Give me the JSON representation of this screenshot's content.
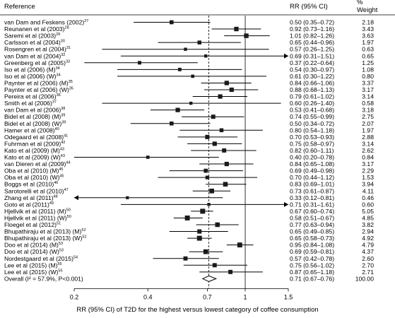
{
  "chart_data": {
    "type": "forest",
    "headers": {
      "reference": "Reference",
      "rr": "RR (95% CI)",
      "weight_pct": "%",
      "weight": "Weight"
    },
    "rows": [
      {
        "name": "van Dam and Feskens (2002)",
        "sup": "27",
        "rr": 0.5,
        "lo": 0.35,
        "hi": 0.72,
        "ci": "0.50 (0.35–0.72)",
        "weight": "2.18"
      },
      {
        "name": "Reunanen et al (2003)",
        "sup": "28",
        "rr": 0.92,
        "lo": 0.73,
        "hi": 1.16,
        "ci": "0.92 (0.73–1.16)",
        "weight": "3.43"
      },
      {
        "name": "Saremi et al (2003)",
        "sup": "29",
        "rr": 1.01,
        "lo": 0.82,
        "hi": 1.26,
        "ci": "1.01 (0.82–1.26)",
        "weight": "3.63"
      },
      {
        "name": "Carlsson et al (2004)",
        "sup": "30",
        "rr": 0.65,
        "lo": 0.44,
        "hi": 0.96,
        "ci": "0.65 (0.44–0.96)",
        "weight": "1.97"
      },
      {
        "name": "Rosengren et al (2004)",
        "sup": "31",
        "rr": 0.57,
        "lo": 0.26,
        "hi": 1.25,
        "ci": "0.57 (0.26–1.25)",
        "weight": "0.63"
      },
      {
        "name": "van Dam et al (2004)",
        "sup": "32",
        "rr": 0.69,
        "lo": 0.31,
        "hi": 1.51,
        "ci": "0.69 (0.31–1.51)",
        "weight": "0.65"
      },
      {
        "name": "Greenberg et al (2005)",
        "sup": "33",
        "rr": 0.37,
        "lo": 0.22,
        "hi": 0.64,
        "ci": "0.37 (0.22–0.64)",
        "weight": "1.25"
      },
      {
        "name": "Iso et al (2006)  (M)",
        "sup": "34",
        "rr": 0.54,
        "lo": 0.3,
        "hi": 0.97,
        "ci": "0.54 (0.30–0.97)",
        "weight": "1.08"
      },
      {
        "name": "Iso et al (2006)  (W)",
        "sup": "34",
        "rr": 0.61,
        "lo": 0.3,
        "hi": 1.22,
        "ci": "0.61 (0.30–1.22)",
        "weight": "0.80"
      },
      {
        "name": "Paynter et al (2006) (M)",
        "sup": "35",
        "rr": 0.84,
        "lo": 0.66,
        "hi": 1.06,
        "ci": "0.84 (0.66–1.06)",
        "weight": "3.37"
      },
      {
        "name": "Paynter et al (2006) (W)",
        "sup": "35",
        "rr": 0.88,
        "lo": 0.68,
        "hi": 1.13,
        "ci": "0.88 (0.68–1.13)",
        "weight": "3.17"
      },
      {
        "name": "Pereira et al (2006)",
        "sup": "36",
        "rr": 0.79,
        "lo": 0.61,
        "hi": 1.02,
        "ci": "0.79 (0.61–1.02)",
        "weight": "3.14"
      },
      {
        "name": "Smith et al (2006)",
        "sup": "37",
        "rr": 0.6,
        "lo": 0.26,
        "hi": 1.4,
        "ci": "0.60 (0.26–1.40)",
        "weight": "0.58"
      },
      {
        "name": "van Dam et al (2006)",
        "sup": "38",
        "rr": 0.53,
        "lo": 0.41,
        "hi": 0.68,
        "ci": "0.53 (0.41–0.68)",
        "weight": "3.18"
      },
      {
        "name": "Bidel et al (2008) (M)",
        "sup": "39",
        "rr": 0.74,
        "lo": 0.55,
        "hi": 0.99,
        "ci": "0.74 (0.55–0.99)",
        "weight": "2.75"
      },
      {
        "name": "Bidel et al (2008) (W)",
        "sup": "39",
        "rr": 0.5,
        "lo": 0.34,
        "hi": 0.72,
        "ci": "0.50 (0.34–0.72)",
        "weight": "2.07"
      },
      {
        "name": "Hamer et al (2008)",
        "sup": "40",
        "rr": 0.8,
        "lo": 0.54,
        "hi": 1.18,
        "ci": "0.80 (0.54–1.18)",
        "weight": "1.97"
      },
      {
        "name": "Odegaard et al (2008)",
        "sup": "41",
        "rr": 0.7,
        "lo": 0.53,
        "hi": 0.93,
        "ci": "0.70 (0.53–0.93)",
        "weight": "2.88"
      },
      {
        "name": "Fuhrman et al (2009)",
        "sup": "42",
        "rr": 0.75,
        "lo": 0.58,
        "hi": 0.97,
        "ci": "0.75 (0.58–0.97)",
        "weight": "3.14"
      },
      {
        "name": "Kato et al (2009) (M)",
        "sup": "43",
        "rr": 0.82,
        "lo": 0.6,
        "hi": 1.11,
        "ci": "0.82 (0.60–1.11)",
        "weight": "2.62"
      },
      {
        "name": "Kato et al (2009) (W)",
        "sup": "43",
        "rr": 0.4,
        "lo": 0.2,
        "hi": 0.78,
        "ci": "0.40 (0.20–0.78)",
        "weight": "0.84"
      },
      {
        "name": "van Dieren et al (2009)",
        "sup": "44",
        "rr": 0.84,
        "lo": 0.65,
        "hi": 1.08,
        "ci": "0.84 (0.65–1.08)",
        "weight": "3.17"
      },
      {
        "name": "Oba et al (2010) (M)",
        "sup": "45",
        "rr": 0.69,
        "lo": 0.49,
        "hi": 0.98,
        "ci": "0.69 (0.49–0.98)",
        "weight": "2.29"
      },
      {
        "name": "Oba et al (2010) (W)",
        "sup": "45",
        "rr": 0.7,
        "lo": 0.44,
        "hi": 1.12,
        "ci": "0.70 (0.44–1.12)",
        "weight": "1.53"
      },
      {
        "name": "Boggs et al (2010)",
        "sup": "46",
        "rr": 0.83,
        "lo": 0.69,
        "hi": 1.01,
        "ci": "0.83 (0.69–1.01)",
        "weight": "3.94"
      },
      {
        "name": "Sarotorelli et al (2010)",
        "sup": "47",
        "rr": 0.73,
        "lo": 0.61,
        "hi": 0.87,
        "ci": "0.73 (0.61–0.87)",
        "weight": "4.11"
      },
      {
        "name": "Zhang et al (2011)",
        "sup": "48",
        "rr": 0.33,
        "lo": 0.12,
        "hi": 0.81,
        "ci": "0.33 (0.12–0.81)",
        "weight": "0.46"
      },
      {
        "name": "Goto et al (2011)",
        "sup": "49",
        "rr": 0.71,
        "lo": 0.31,
        "hi": 1.61,
        "ci": "0.71 (0.31–1.61)",
        "weight": "0.60"
      },
      {
        "name": "Hjellvik et al (2011) (M)",
        "sup": "50",
        "rr": 0.67,
        "lo": 0.6,
        "hi": 0.74,
        "ci": "0.67 (0.60–0.74)",
        "weight": "5.05"
      },
      {
        "name": "Hjellvik et al (2011) (W)",
        "sup": "50",
        "rr": 0.58,
        "lo": 0.51,
        "hi": 0.67,
        "ci": "0.58 (0.51–0.67)",
        "weight": "4.85"
      },
      {
        "name": "Floegel et al (2012)",
        "sup": "51",
        "rr": 0.77,
        "lo": 0.63,
        "hi": 0.94,
        "ci": "0.77 (0.63–0.94)",
        "weight": "3.82"
      },
      {
        "name": "Bhupathiraju et al (2013) (M)",
        "sup": "52",
        "rr": 0.65,
        "lo": 0.49,
        "hi": 0.85,
        "ci": "0.65 (0.49–0.85)",
        "weight": "2.94"
      },
      {
        "name": "Bhupathiraju et al (2013) (W)",
        "sup": "52",
        "rr": 0.65,
        "lo": 0.58,
        "hi": 0.73,
        "ci": "0.65 (0.58–0.73)",
        "weight": "4.92"
      },
      {
        "name": "Doo et al (2014) (M)",
        "sup": "53",
        "rr": 0.95,
        "lo": 0.84,
        "hi": 1.08,
        "ci": "0.95 (0.84–1.08)",
        "weight": "4.79"
      },
      {
        "name": "Doo et al (2014) (W)",
        "sup": "53",
        "rr": 0.69,
        "lo": 0.59,
        "hi": 0.81,
        "ci": "0.69 (0.59–0.81)",
        "weight": "4.37"
      },
      {
        "name": "Nordestgaard et al (2015)",
        "sup": "54",
        "rr": 0.57,
        "lo": 0.42,
        "hi": 0.78,
        "ci": "0.57 (0.42–0.78)",
        "weight": "2.60"
      },
      {
        "name": "Lee et al (2015) (M)",
        "sup": "55",
        "rr": 0.75,
        "lo": 0.56,
        "hi": 1.02,
        "ci": "0.75 (0.56–1.02)",
        "weight": "2.70"
      },
      {
        "name": "Lee et al (2015) (W)",
        "sup": "55",
        "rr": 0.87,
        "lo": 0.65,
        "hi": 1.18,
        "ci": "0.87 (0.65–1.18)",
        "weight": "2.71"
      }
    ],
    "overall": {
      "name": "Overall (I² = 57.9%, P<0.001)",
      "rr": 0.71,
      "lo": 0.67,
      "hi": 0.76,
      "ci": "0.71 (0.67–0.76)",
      "weight": "100.00"
    },
    "x_scale": "log",
    "xlim": [
      0.2,
      1.5
    ],
    "x_ticks": [
      {
        "value": 0.2,
        "label": "0.2"
      },
      {
        "value": 0.4,
        "label": "0.4"
      },
      {
        "value": 0.7,
        "label": "0.7"
      },
      {
        "value": 1.0,
        "label": "1"
      },
      {
        "value": 1.5,
        "label": "1.5"
      }
    ],
    "xlabel": "RR (95% CI) of T2D for the highest versus lowest category of coffee consumption",
    "colors": {
      "marker": "#1a1a1a",
      "line": "#000000",
      "reference": "#000000",
      "overall_fill": "#ffffff"
    }
  }
}
